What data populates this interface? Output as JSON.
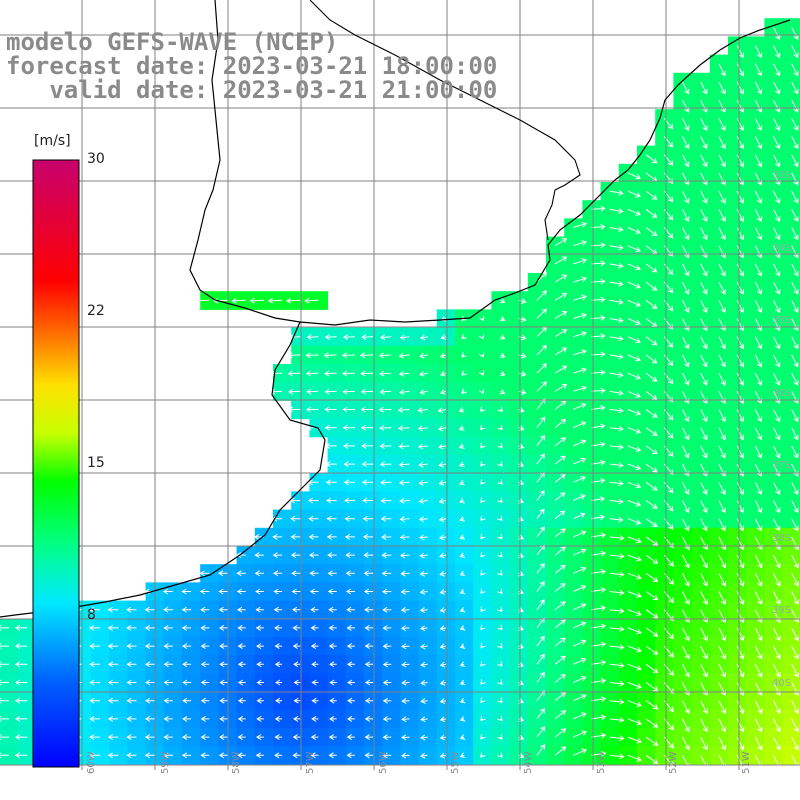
{
  "titles": {
    "line1": "modelo GEFS-WAVE (NCEP)",
    "line2": "forecast date: 2023-03-21 18:00:00",
    "line3": "   valid date: 2023-03-21 21:00:00"
  },
  "colorbar": {
    "unit": "[m/s]",
    "min": 0,
    "max": 30,
    "tick_labels": [
      "30",
      "22",
      "15",
      "8"
    ],
    "tick_values": [
      30,
      22,
      15,
      8
    ],
    "colors": [
      "#0000ff",
      "#00a0ff",
      "#00ffff",
      "#00ff00",
      "#ffff00",
      "#ff8000",
      "#ff0000",
      "#c80078"
    ]
  },
  "map": {
    "variable": "wind speed and direction",
    "lat_labels": [
      "33S",
      "34S",
      "35S",
      "36S",
      "37S",
      "38S",
      "39S",
      "40S"
    ],
    "lon_labels": [
      "60W",
      "59W",
      "58W",
      "57W",
      "56W",
      "55W",
      "54W",
      "53W",
      "52W",
      "51W"
    ],
    "land_color": "#ffffff",
    "coast_color": "#000000",
    "grid_color": "#808080"
  }
}
